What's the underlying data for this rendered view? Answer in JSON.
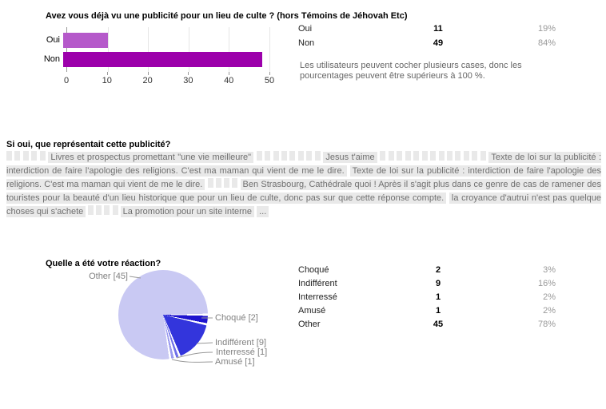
{
  "q1": {
    "title": "Avez vous déjà vu une publicité pour un lieu de culte ? (hors Témoins de Jéhovah Etc)",
    "table": {
      "rows": [
        {
          "label": "Oui",
          "count": "11",
          "pct": "19%"
        },
        {
          "label": "Non",
          "count": "49",
          "pct": "84%"
        }
      ]
    },
    "note": "Les utilisateurs peuvent cocher plusieurs cases, donc les pourcentages peuvent être supérieurs à 100 %."
  },
  "q2": {
    "title": "Si oui, que représentait cette publicité?",
    "responses": [
      {
        "empty": 5
      },
      {
        "text": "Livres et prospectus promettant \"une vie meilleure\""
      },
      {
        "empty": 8
      },
      {
        "text": "Jesus t'aime"
      },
      {
        "empty": 13
      },
      {
        "text": "Texte de loi sur la publicité : interdiction de faire l'apologie des religions. C'est ma maman qui vient de me le dire."
      },
      {
        "text": "Texte de loi sur la publicité : interdiction de faire l'apologie des religions. C'est ma maman qui vient de me le dire."
      },
      {
        "empty": 4
      },
      {
        "text": "Ben Strasbourg, Cathédrale quoi ! Après il s'agit plus dans ce genre de cas de ramener des touristes pour la beauté d'un lieu historique que pour un lieu de culte, donc pas sur que cette réponse compte."
      },
      {
        "text": "la croyance d'autrui n'est pas quelque choses qui s'achete"
      },
      {
        "empty": 4
      },
      {
        "text": "La promotion pour un site interne"
      },
      {
        "text": "..."
      }
    ]
  },
  "q3": {
    "title": "Quelle a été votre réaction?",
    "table": {
      "rows": [
        {
          "label": "Choqué",
          "count": "2",
          "pct": "3%"
        },
        {
          "label": "Indifférent",
          "count": "9",
          "pct": "16%"
        },
        {
          "label": "Interressé",
          "count": "1",
          "pct": "2%"
        },
        {
          "label": "Amusé",
          "count": "1",
          "pct": "2%"
        },
        {
          "label": "Other",
          "count": "45",
          "pct": "78%"
        }
      ]
    },
    "callouts": [
      {
        "text": "Other [45]"
      },
      {
        "text": "Choqué [2]"
      },
      {
        "text": "Indifférent [9]"
      },
      {
        "text": "Interressé [1]"
      },
      {
        "text": "Amusé [1]"
      }
    ]
  },
  "chart_data": [
    {
      "type": "bar",
      "orientation": "horizontal",
      "title": "Avez vous déjà vu une publicité pour un lieu de culte ? (hors Témoins de Jéhovah Etc)",
      "categories": [
        "Oui",
        "Non"
      ],
      "values": [
        11,
        49
      ],
      "percents": [
        "19%",
        "84%"
      ],
      "xlim": [
        0,
        50
      ],
      "xticks": [
        0,
        10,
        20,
        30,
        40,
        50
      ],
      "bar_colors": [
        "#b559ca",
        "#9c00ab"
      ],
      "grid": true,
      "axis_color": "#999999"
    },
    {
      "type": "pie",
      "title": "Quelle a été votre réaction?",
      "labels": [
        "Choqué",
        "Indifférent",
        "Interressé",
        "Amusé",
        "Other"
      ],
      "values": [
        2,
        9,
        1,
        1,
        45
      ],
      "percents": [
        "3%",
        "16%",
        "2%",
        "2%",
        "78%"
      ],
      "colors": [
        "#1e14cf",
        "#3335dc",
        "#7070e8",
        "#9b9bf0",
        "#c9c9f3"
      ],
      "start_angle": "east",
      "direction": "clockwise",
      "legend_position": "callouts"
    }
  ]
}
